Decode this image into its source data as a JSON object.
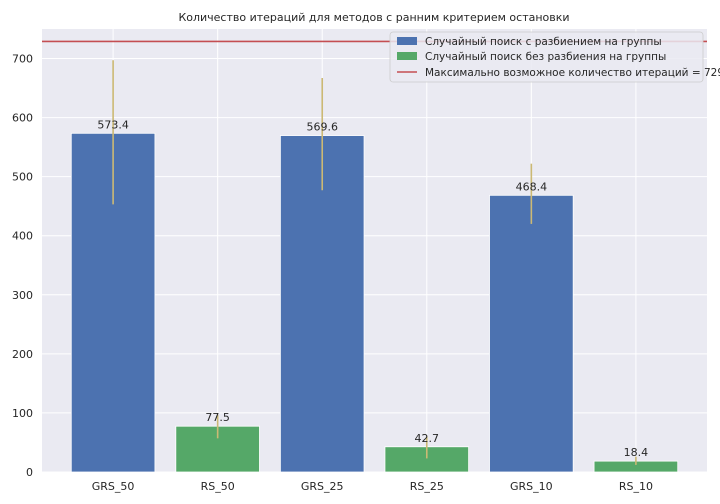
{
  "chart_data": {
    "type": "bar",
    "title": "Количество итераций для методов с ранним критерием остановки",
    "categories": [
      "GRS_50",
      "RS_50",
      "GRS_25",
      "RS_25",
      "GRS_10",
      "RS_10"
    ],
    "values": [
      573.4,
      77.5,
      569.6,
      42.7,
      468.4,
      18.4
    ],
    "labels": [
      "573.4",
      "77.5",
      "569.6",
      "42.7",
      "468.4",
      "18.4"
    ],
    "error_low": [
      453,
      57,
      477,
      23,
      420,
      12
    ],
    "error_high": [
      697,
      97,
      667,
      60,
      522,
      26
    ],
    "bar_series": [
      0,
      1,
      0,
      1,
      0,
      1
    ],
    "series": [
      {
        "name": "Случайный поиск с разбиением на группы",
        "color": "#4c72b0"
      },
      {
        "name": "Случайный поиск без разбиения на группы",
        "color": "#55a868"
      }
    ],
    "hline": {
      "value": 729,
      "name": "Максимально возможное количество итераций = 729",
      "color": "#c44e52"
    },
    "error_color": "#ccb974",
    "ylim": [
      0,
      750
    ],
    "yticks": [
      0,
      100,
      200,
      300,
      400,
      500,
      600,
      700
    ],
    "ytick_labels": [
      "0",
      "100",
      "200",
      "300",
      "400",
      "500",
      "600",
      "700"
    ],
    "xlabel": "",
    "ylabel": "",
    "grid": true,
    "legend_position": "top-right",
    "background": "#eaeaf2"
  }
}
